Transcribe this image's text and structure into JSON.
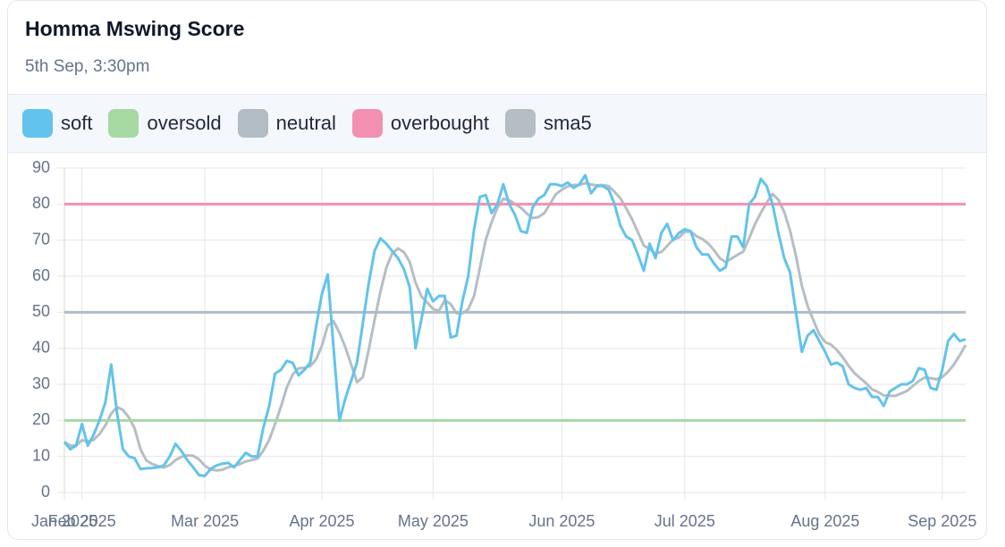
{
  "header": {
    "title": "Homma Mswing Score",
    "subtitle": "5th Sep, 3:30pm"
  },
  "chart_data": {
    "type": "line",
    "categories": [
      "Jan 2025",
      null,
      null,
      "Feb 2025",
      null,
      null,
      null,
      null,
      null,
      null,
      null,
      null,
      null,
      null,
      null,
      null,
      null,
      null,
      null,
      null,
      null,
      null,
      null,
      null,
      "Mar 2025",
      null,
      null,
      null,
      null,
      null,
      null,
      null,
      null,
      null,
      null,
      null,
      null,
      null,
      null,
      null,
      null,
      null,
      null,
      null,
      "Apr 2025",
      null,
      null,
      null,
      null,
      null,
      null,
      null,
      null,
      null,
      null,
      null,
      null,
      null,
      null,
      null,
      null,
      null,
      null,
      "May 2025",
      null,
      null,
      null,
      null,
      null,
      null,
      null,
      null,
      null,
      null,
      null,
      null,
      null,
      null,
      null,
      null,
      null,
      null,
      null,
      null,
      null,
      "Jun 2025",
      null,
      null,
      null,
      null,
      null,
      null,
      null,
      null,
      null,
      null,
      null,
      null,
      null,
      null,
      null,
      null,
      null,
      null,
      null,
      null,
      "Jul 2025",
      null,
      null,
      null,
      null,
      null,
      null,
      null,
      null,
      null,
      null,
      null,
      null,
      null,
      null,
      null,
      null,
      null,
      null,
      null,
      null,
      null,
      null,
      null,
      "Aug 2025",
      null,
      null,
      null,
      null,
      null,
      null,
      null,
      null,
      null,
      null,
      null,
      null,
      null,
      null,
      null,
      null,
      null,
      null,
      null,
      "Sep 2025",
      null,
      null,
      null,
      null
    ],
    "ylim": [
      0,
      90
    ],
    "yticks": [
      0,
      10,
      20,
      30,
      40,
      50,
      60,
      70,
      80,
      90
    ],
    "grid": true,
    "series": [
      {
        "name": "soft",
        "color": "#62c3ec",
        "values": [
          14,
          12,
          13,
          19,
          13,
          16,
          20,
          25,
          35.5,
          22,
          12,
          10,
          9.5,
          6.5,
          6.7,
          6.8,
          7,
          7.5,
          10,
          13.5,
          11.5,
          9,
          7,
          4.8,
          4.6,
          6.5,
          7.5,
          8,
          8.2,
          7,
          9,
          11,
          10,
          10,
          18,
          24,
          33,
          34,
          36.5,
          36,
          32.5,
          34,
          36,
          46,
          55,
          60.5,
          40,
          20,
          26,
          31,
          36,
          47,
          58,
          67,
          70.5,
          69,
          67,
          65,
          62,
          57,
          40,
          48,
          56.5,
          53,
          54.5,
          54.5,
          43,
          43.5,
          53,
          60,
          73,
          82,
          82.5,
          77.5,
          80,
          85.5,
          80,
          77,
          72.5,
          72,
          79,
          81.5,
          82.5,
          85.5,
          85.5,
          85,
          86,
          84.5,
          85.5,
          88,
          83,
          85,
          85,
          84,
          80,
          74,
          71,
          70,
          66,
          61.5,
          69,
          65,
          72,
          74.5,
          70,
          72,
          73,
          72.5,
          68,
          66,
          66,
          63.5,
          61.5,
          62.5,
          71,
          71,
          68,
          80,
          82,
          87,
          85,
          80,
          72,
          65,
          61,
          50,
          39,
          43.5,
          45,
          42,
          39,
          35.5,
          36,
          35,
          30,
          29,
          28.5,
          29,
          26.5,
          26.5,
          24,
          28,
          29,
          30,
          30,
          31,
          34.5,
          34,
          29,
          28.5,
          34,
          42,
          44,
          42,
          42.5
        ]
      },
      {
        "name": "oversold",
        "color": "#a6d8a2",
        "values": [
          20,
          20,
          20,
          20,
          20,
          20,
          20,
          20,
          20,
          20,
          20,
          20,
          20,
          20,
          20,
          20,
          20,
          20,
          20,
          20,
          20,
          20,
          20,
          20,
          20,
          20,
          20,
          20,
          20,
          20,
          20,
          20,
          20,
          20,
          20,
          20,
          20,
          20,
          20,
          20,
          20,
          20,
          20,
          20,
          20,
          20,
          20,
          20,
          20,
          20,
          20,
          20,
          20,
          20,
          20,
          20,
          20,
          20,
          20,
          20,
          20,
          20,
          20,
          20,
          20,
          20,
          20,
          20,
          20,
          20,
          20,
          20,
          20,
          20,
          20,
          20,
          20,
          20,
          20,
          20,
          20,
          20,
          20,
          20,
          20,
          20,
          20,
          20,
          20,
          20,
          20,
          20,
          20,
          20,
          20,
          20,
          20,
          20,
          20,
          20,
          20,
          20,
          20,
          20,
          20,
          20,
          20,
          20,
          20,
          20,
          20,
          20,
          20,
          20,
          20,
          20,
          20,
          20,
          20,
          20,
          20,
          20,
          20,
          20,
          20,
          20,
          20,
          20,
          20,
          20,
          20,
          20,
          20,
          20,
          20,
          20,
          20,
          20,
          20,
          20,
          20,
          20,
          20,
          20,
          20,
          20,
          20,
          20,
          20,
          20,
          20,
          20,
          20,
          20,
          20
        ]
      },
      {
        "name": "neutral",
        "color": "#b1bcc4",
        "values": [
          50,
          50,
          50,
          50,
          50,
          50,
          50,
          50,
          50,
          50,
          50,
          50,
          50,
          50,
          50,
          50,
          50,
          50,
          50,
          50,
          50,
          50,
          50,
          50,
          50,
          50,
          50,
          50,
          50,
          50,
          50,
          50,
          50,
          50,
          50,
          50,
          50,
          50,
          50,
          50,
          50,
          50,
          50,
          50,
          50,
          50,
          50,
          50,
          50,
          50,
          50,
          50,
          50,
          50,
          50,
          50,
          50,
          50,
          50,
          50,
          50,
          50,
          50,
          50,
          50,
          50,
          50,
          50,
          50,
          50,
          50,
          50,
          50,
          50,
          50,
          50,
          50,
          50,
          50,
          50,
          50,
          50,
          50,
          50,
          50,
          50,
          50,
          50,
          50,
          50,
          50,
          50,
          50,
          50,
          50,
          50,
          50,
          50,
          50,
          50,
          50,
          50,
          50,
          50,
          50,
          50,
          50,
          50,
          50,
          50,
          50,
          50,
          50,
          50,
          50,
          50,
          50,
          50,
          50,
          50,
          50,
          50,
          50,
          50,
          50,
          50,
          50,
          50,
          50,
          50,
          50,
          50,
          50,
          50,
          50,
          50,
          50,
          50,
          50,
          50,
          50,
          50,
          50,
          50,
          50,
          50,
          50,
          50,
          50,
          50,
          50,
          50,
          50,
          50,
          50
        ]
      },
      {
        "name": "overbought",
        "color": "#f38fb1",
        "values": [
          80,
          80,
          80,
          80,
          80,
          80,
          80,
          80,
          80,
          80,
          80,
          80,
          80,
          80,
          80,
          80,
          80,
          80,
          80,
          80,
          80,
          80,
          80,
          80,
          80,
          80,
          80,
          80,
          80,
          80,
          80,
          80,
          80,
          80,
          80,
          80,
          80,
          80,
          80,
          80,
          80,
          80,
          80,
          80,
          80,
          80,
          80,
          80,
          80,
          80,
          80,
          80,
          80,
          80,
          80,
          80,
          80,
          80,
          80,
          80,
          80,
          80,
          80,
          80,
          80,
          80,
          80,
          80,
          80,
          80,
          80,
          80,
          80,
          80,
          80,
          80,
          80,
          80,
          80,
          80,
          80,
          80,
          80,
          80,
          80,
          80,
          80,
          80,
          80,
          80,
          80,
          80,
          80,
          80,
          80,
          80,
          80,
          80,
          80,
          80,
          80,
          80,
          80,
          80,
          80,
          80,
          80,
          80,
          80,
          80,
          80,
          80,
          80,
          80,
          80,
          80,
          80,
          80,
          80,
          80,
          80,
          80,
          80,
          80,
          80,
          80,
          80,
          80,
          80,
          80,
          80,
          80,
          80,
          80,
          80,
          80,
          80,
          80,
          80,
          80,
          80,
          80,
          80,
          80,
          80,
          80,
          80,
          80,
          80,
          80,
          80,
          80,
          80,
          80,
          80
        ]
      },
      {
        "name": "sma5",
        "color": "#b5bec5",
        "values": [
          14,
          13,
          13,
          14.5,
          14.2,
          14.6,
          16.2,
          18.6,
          21.9,
          23.7,
          22.9,
          20.9,
          17.8,
          12,
          8.9,
          7.9,
          7.3,
          6.9,
          7.6,
          9,
          9.9,
          10.3,
          10.2,
          9.2,
          7.4,
          6.4,
          6.1,
          6.3,
          7,
          7.4,
          7.9,
          8.6,
          9,
          9.4,
          11.6,
          14.6,
          19,
          23.8,
          29.1,
          32.7,
          34.4,
          34.6,
          35,
          36.9,
          40.7,
          46.3,
          47.5,
          44.3,
          40.3,
          35.5,
          30.6,
          32,
          39.6,
          47.8,
          55.7,
          62.3,
          66.3,
          67.7,
          66.7,
          64,
          58.2,
          54.4,
          52.7,
          50.9,
          50.4,
          53.3,
          52.3,
          49.7,
          49.7,
          50.8,
          54.5,
          62.3,
          70.1,
          75,
          79,
          81.5,
          81.1,
          80,
          79,
          77.4,
          76.1,
          76.4,
          77.5,
          80.1,
          82.8,
          84,
          84.9,
          85.3,
          85.3,
          85.8,
          85.4,
          85.2,
          85.3,
          85,
          83.4,
          81.6,
          78.8,
          75.8,
          72.2,
          68.5,
          67.5,
          66.3,
          66.7,
          68.4,
          70.1,
          70.7,
          72.3,
          72.4,
          71.1,
          70.3,
          69.1,
          67.2,
          65,
          63.9,
          64.9,
          65.9,
          66.8,
          70.5,
          74.4,
          77.6,
          80.4,
          82.8,
          81.2,
          77.8,
          72.6,
          65.6,
          57.4,
          51.7,
          47.7,
          43.9,
          41.7,
          41,
          39.5,
          37.5,
          35.1,
          33.1,
          31.7,
          30.3,
          28.6,
          27.9,
          26.9,
          26.8,
          26.8,
          27.5,
          28.2,
          29.6,
          30.9,
          31.9,
          31.7,
          31.4,
          32,
          33.5,
          35.5,
          38.1,
          40.9
        ]
      }
    ]
  }
}
